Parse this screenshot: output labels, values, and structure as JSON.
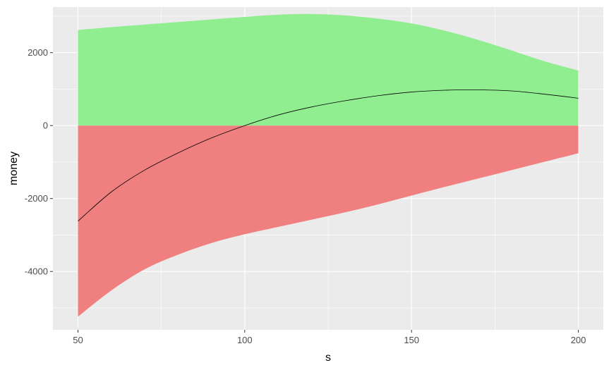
{
  "chart_data": {
    "type": "area",
    "title": "",
    "xlabel": "s",
    "ylabel": "money",
    "xlim": [
      42.5,
      207.5
    ],
    "ylim": [
      -5600,
      3250
    ],
    "x_ticks": [
      50,
      100,
      150,
      200
    ],
    "y_ticks": [
      -4000,
      -2000,
      0,
      2000
    ],
    "grid": true,
    "legend": "none",
    "colors": {
      "panel_background": "#ebebeb",
      "grid_line": "#ffffff",
      "positive_fill": "#90ee90",
      "negative_fill": "#f08080",
      "line": "#000000"
    },
    "x": [
      50,
      60,
      70,
      80,
      90,
      100,
      110,
      120,
      130,
      140,
      150,
      160,
      170,
      180,
      190,
      200
    ],
    "series": [
      {
        "values": [
          2620,
          2700,
          2770,
          2840,
          2910,
          2980,
          3040,
          3060,
          3020,
          2930,
          2800,
          2600,
          2350,
          2060,
          1760,
          1510
        ]
      },
      {
        "values": [
          -5240,
          -4520,
          -3940,
          -3540,
          -3220,
          -2980,
          -2780,
          -2580,
          -2380,
          -2160,
          -1920,
          -1680,
          -1450,
          -1220,
          -990,
          -760
        ]
      },
      {
        "values": [
          -2620,
          -1820,
          -1220,
          -750,
          -340,
          0,
          290,
          510,
          680,
          820,
          920,
          970,
          980,
          950,
          860,
          750
        ]
      }
    ]
  }
}
